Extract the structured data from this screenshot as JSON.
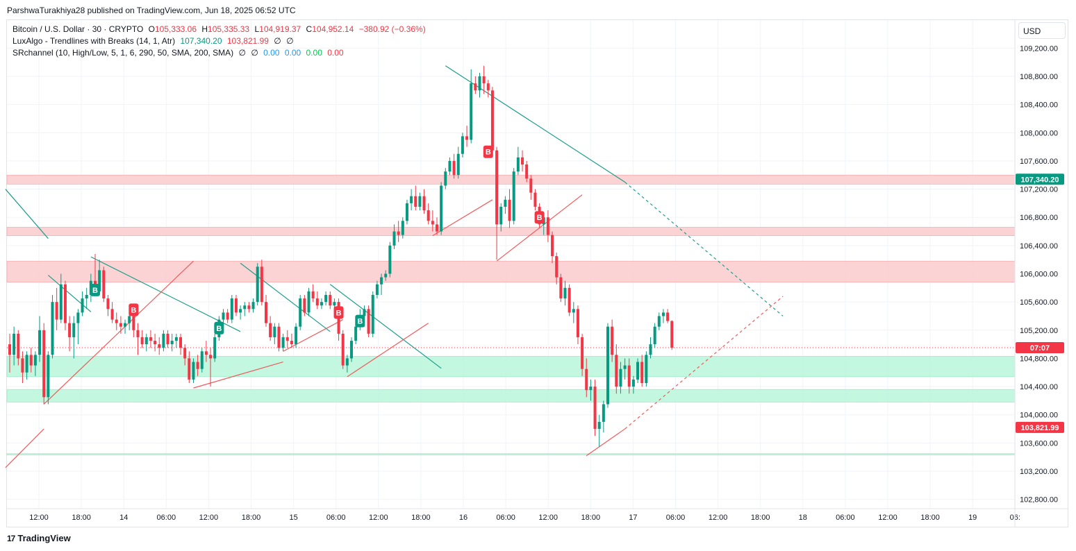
{
  "publisher": "ParshwaTurakhiya28 published on TradingView.com, Jun 18, 2025 06:52 UTC",
  "legend": {
    "symbol": "Bitcoin / U.S. Dollar · 30 · CRYPTO",
    "o_label": "O",
    "o": "105,333.06",
    "h_label": "H",
    "h": "105,335.33",
    "l_label": "L",
    "l": "104,919.37",
    "c_label": "C",
    "c": "104,952.14",
    "change": "−380.92 (−0.36%)",
    "ind1_name": "LuxAlgo - Trendlines with Breaks (14, 1, Atr)",
    "ind1_v1": "107,340.20",
    "ind1_v2": "103,821.99",
    "ind1_v3": "∅",
    "ind1_v4": "∅",
    "ind2_name": "SRchannel (10, High/Low, 5, 1, 6, 290, 50, SMA, 200, SMA)",
    "ind2_v1": "∅",
    "ind2_v2": "∅",
    "ind2_v3": "0.00",
    "ind2_v4": "0.00",
    "ind2_v5": "0.00",
    "ind2_v6": "0.00"
  },
  "currency_button": "USD",
  "footer": {
    "logo_text": "TradingView",
    "logo_mark": "17"
  },
  "colors": {
    "up": "#089981",
    "down": "#f23645",
    "grid": "#f0f3fa",
    "resistance_zone": "#fccbcd",
    "support_zone": "#b9f6da",
    "trend_teal": "#1b9e8a",
    "trend_red": "#f05a5a"
  },
  "chart_data": {
    "type": "candlestick",
    "title": "Bitcoin / U.S. Dollar · 30 · CRYPTO",
    "ylim": [
      102600,
      109400
    ],
    "y_ticks": [
      "109,200.00",
      "108,800.00",
      "108,400.00",
      "108,000.00",
      "107,600.00",
      "107,200.00",
      "106,800.00",
      "106,400.00",
      "106,000.00",
      "105,600.00",
      "105,200.00",
      "104,800.00",
      "104,400.00",
      "104,000.00",
      "103,600.00",
      "103,200.00",
      "102,800.00"
    ],
    "x_ticks": [
      "12:00",
      "18:00",
      "14",
      "06:00",
      "12:00",
      "18:00",
      "15",
      "06:00",
      "12:00",
      "18:00",
      "16",
      "06:00",
      "12:00",
      "18:00",
      "17",
      "06:00",
      "12:00",
      "18:00",
      "18",
      "06:00",
      "12:00",
      "18:00",
      "19",
      "06:"
    ],
    "price_labels": [
      {
        "text": "107,340.20",
        "value": 107340.2,
        "color": "#089981"
      },
      {
        "text": "07:07",
        "value": 104952,
        "color": "#f23645"
      },
      {
        "text": "103,821.99",
        "value": 103822,
        "color": "#f23645"
      }
    ],
    "last_price": 104952.14,
    "zones": [
      {
        "kind": "resistance",
        "low": 107270,
        "high": 107400
      },
      {
        "kind": "resistance",
        "low": 106540,
        "high": 106660
      },
      {
        "kind": "resistance",
        "low": 105880,
        "high": 106180
      },
      {
        "kind": "support",
        "low": 104540,
        "high": 104830
      },
      {
        "kind": "support",
        "low": 104180,
        "high": 104360
      },
      {
        "kind": "support_line",
        "low": 103430,
        "high": 103450
      }
    ],
    "trendlines": [
      {
        "color": "teal",
        "from": [
          -1,
          107200
        ],
        "to": [
          9,
          106500
        ],
        "dashed": false
      },
      {
        "color": "teal",
        "from": [
          9,
          105980
        ],
        "to": [
          19,
          105460
        ],
        "dashed": false
      },
      {
        "color": "teal",
        "from": [
          19,
          106240
        ],
        "to": [
          54,
          105180
        ],
        "dashed": false
      },
      {
        "color": "teal",
        "from": [
          54,
          106150
        ],
        "to": [
          75,
          105180
        ],
        "dashed": false
      },
      {
        "color": "teal",
        "from": [
          75,
          105850
        ],
        "to": [
          101,
          104660
        ],
        "dashed": false
      },
      {
        "color": "teal",
        "from": [
          102,
          108950
        ],
        "to": [
          144,
          107300
        ],
        "dashed": false
      },
      {
        "color": "teal",
        "from": [
          144,
          107300
        ],
        "to": [
          181,
          105400
        ],
        "dashed": true
      },
      {
        "color": "red",
        "from": [
          -1,
          103250
        ],
        "to": [
          8,
          103800
        ],
        "dashed": false
      },
      {
        "color": "red",
        "from": [
          8,
          104150
        ],
        "to": [
          43,
          106180
        ],
        "dashed": false
      },
      {
        "color": "red",
        "from": [
          43,
          104380
        ],
        "to": [
          64,
          104750
        ],
        "dashed": false
      },
      {
        "color": "red",
        "from": [
          64,
          104900
        ],
        "to": [
          78,
          105350
        ],
        "dashed": false
      },
      {
        "color": "red",
        "from": [
          79,
          104540
        ],
        "to": [
          98,
          105300
        ],
        "dashed": false
      },
      {
        "color": "red",
        "from": [
          99,
          106540
        ],
        "to": [
          113,
          107050
        ],
        "dashed": false
      },
      {
        "color": "red",
        "from": [
          114,
          106180
        ],
        "to": [
          134,
          107120
        ],
        "dashed": false
      },
      {
        "color": "red",
        "from": [
          135,
          103420
        ],
        "to": [
          144,
          103800
        ],
        "dashed": false
      },
      {
        "color": "red",
        "from": [
          144,
          103800
        ],
        "to": [
          181,
          105680
        ],
        "dashed": true
      }
    ],
    "break_labels": [
      {
        "text": "B",
        "index": 20,
        "value": 105760,
        "color": "#089981"
      },
      {
        "text": "B",
        "index": 29,
        "value": 105480,
        "color": "#f23645"
      },
      {
        "text": "B",
        "index": 49,
        "value": 105220,
        "color": "#089981"
      },
      {
        "text": "B",
        "index": 77,
        "value": 105440,
        "color": "#f23645"
      },
      {
        "text": "B",
        "index": 82,
        "value": 105320,
        "color": "#089981"
      },
      {
        "text": "B",
        "index": 112,
        "value": 107720,
        "color": "#f23645"
      },
      {
        "text": "B",
        "index": 124,
        "value": 106790,
        "color": "#f23645"
      }
    ],
    "candles": [
      [
        105000,
        105150,
        104600,
        104850
      ],
      [
        104850,
        105250,
        104700,
        105150
      ],
      [
        105150,
        105200,
        104700,
        104800
      ],
      [
        104800,
        104900,
        104450,
        104600
      ],
      [
        104600,
        104900,
        104500,
        104850
      ],
      [
        104850,
        104950,
        104600,
        104700
      ],
      [
        104700,
        104900,
        104550,
        104850
      ],
      [
        104850,
        105400,
        104750,
        105200
      ],
      [
        105200,
        105300,
        104150,
        104250
      ],
      [
        104250,
        104900,
        104150,
        104850
      ],
      [
        104850,
        105700,
        104800,
        105600
      ],
      [
        105600,
        105800,
        105200,
        105350
      ],
      [
        105350,
        106000,
        105300,
        105850
      ],
      [
        105850,
        105900,
        105200,
        105300
      ],
      [
        105300,
        105400,
        104900,
        105100
      ],
      [
        105100,
        105400,
        104800,
        105300
      ],
      [
        105300,
        105500,
        105000,
        105450
      ],
      [
        105450,
        105750,
        105400,
        105650
      ],
      [
        105650,
        105800,
        105500,
        105700
      ],
      [
        105700,
        106000,
        105600,
        105900
      ],
      [
        105900,
        106280,
        105700,
        105750
      ],
      [
        105750,
        106200,
        105700,
        106050
      ],
      [
        106050,
        106100,
        105600,
        105650
      ],
      [
        105650,
        105700,
        105400,
        105500
      ],
      [
        105500,
        105600,
        105300,
        105350
      ],
      [
        105350,
        105450,
        105200,
        105300
      ],
      [
        105300,
        105400,
        105150,
        105250
      ],
      [
        105250,
        105350,
        105150,
        105300
      ],
      [
        105300,
        105450,
        105200,
        105400
      ],
      [
        105400,
        105500,
        105100,
        105200
      ],
      [
        105200,
        105300,
        104850,
        105100
      ],
      [
        105100,
        105200,
        104950,
        105000
      ],
      [
        105000,
        105150,
        104900,
        105100
      ],
      [
        105100,
        105200,
        104950,
        105050
      ],
      [
        105050,
        105150,
        104900,
        105000
      ],
      [
        105000,
        105100,
        104850,
        104950
      ],
      [
        104950,
        105200,
        104900,
        105150
      ],
      [
        105150,
        105200,
        104950,
        105000
      ],
      [
        105000,
        105150,
        104900,
        105050
      ],
      [
        105050,
        105150,
        104950,
        105100
      ],
      [
        105100,
        105150,
        104850,
        104950
      ],
      [
        104950,
        105000,
        104700,
        104800
      ],
      [
        104800,
        104900,
        104450,
        104500
      ],
      [
        104500,
        104800,
        104450,
        104750
      ],
      [
        104750,
        104850,
        104550,
        104650
      ],
      [
        104650,
        104950,
        104600,
        104900
      ],
      [
        104900,
        105050,
        104750,
        104850
      ],
      [
        104850,
        104950,
        104400,
        104800
      ],
      [
        104800,
        105150,
        104750,
        105100
      ],
      [
        105100,
        105400,
        105050,
        105350
      ],
      [
        105350,
        105500,
        105250,
        105450
      ],
      [
        105450,
        105500,
        105300,
        105350
      ],
      [
        105350,
        105700,
        105300,
        105650
      ],
      [
        105650,
        105700,
        105400,
        105450
      ],
      [
        105450,
        105550,
        105350,
        105500
      ],
      [
        105500,
        105600,
        105400,
        105550
      ],
      [
        105550,
        105600,
        105450,
        105500
      ],
      [
        105500,
        105650,
        105450,
        105600
      ],
      [
        105600,
        106150,
        105550,
        106100
      ],
      [
        106100,
        106200,
        105550,
        105600
      ],
      [
        105600,
        105700,
        105250,
        105300
      ],
      [
        105300,
        105400,
        105050,
        105100
      ],
      [
        105100,
        105300,
        105000,
        105250
      ],
      [
        105250,
        105300,
        104900,
        104950
      ],
      [
        104950,
        105150,
        104900,
        105100
      ],
      [
        105100,
        105200,
        104950,
        105050
      ],
      [
        105050,
        105150,
        104950,
        105000
      ],
      [
        105000,
        105300,
        104950,
        105250
      ],
      [
        105250,
        105700,
        105200,
        105650
      ],
      [
        105650,
        105700,
        105400,
        105450
      ],
      [
        105450,
        105800,
        105400,
        105750
      ],
      [
        105750,
        105850,
        105600,
        105650
      ],
      [
        105650,
        105750,
        105500,
        105550
      ],
      [
        105550,
        105650,
        105500,
        105600
      ],
      [
        105600,
        105750,
        105550,
        105700
      ],
      [
        105700,
        105750,
        105500,
        105550
      ],
      [
        105550,
        105650,
        105450,
        105600
      ],
      [
        105600,
        105650,
        105050,
        105150
      ],
      [
        105150,
        105200,
        104650,
        104700
      ],
      [
        104700,
        104850,
        104600,
        104800
      ],
      [
        104800,
        105100,
        104750,
        105050
      ],
      [
        105050,
        105300,
        105000,
        105250
      ],
      [
        105250,
        105500,
        105200,
        105400
      ],
      [
        105400,
        105550,
        105300,
        105500
      ],
      [
        105500,
        105550,
        105100,
        105150
      ],
      [
        105150,
        105750,
        105100,
        105700
      ],
      [
        105700,
        105900,
        105650,
        105850
      ],
      [
        105850,
        106000,
        105700,
        105950
      ],
      [
        105950,
        106050,
        105900,
        106000
      ],
      [
        106000,
        106450,
        105950,
        106400
      ],
      [
        106400,
        106700,
        106350,
        106600
      ],
      [
        106600,
        106750,
        106450,
        106550
      ],
      [
        106550,
        106800,
        106500,
        106750
      ],
      [
        106750,
        107050,
        106700,
        107000
      ],
      [
        107000,
        107200,
        106900,
        107100
      ],
      [
        107100,
        107250,
        106900,
        106950
      ],
      [
        106950,
        107150,
        106900,
        107100
      ],
      [
        107100,
        107200,
        106850,
        106900
      ],
      [
        106900,
        107000,
        106700,
        106750
      ],
      [
        106750,
        106900,
        106600,
        106700
      ],
      [
        106700,
        106800,
        106550,
        106600
      ],
      [
        106600,
        107300,
        106550,
        107250
      ],
      [
        107250,
        107500,
        107200,
        107450
      ],
      [
        107450,
        107650,
        107400,
        107600
      ],
      [
        107600,
        107700,
        107350,
        107400
      ],
      [
        107400,
        107800,
        107350,
        107700
      ],
      [
        107700,
        108000,
        107650,
        107950
      ],
      [
        107950,
        108100,
        107800,
        107900
      ],
      [
        107900,
        108900,
        107850,
        108700
      ],
      [
        108700,
        108800,
        108550,
        108600
      ],
      [
        108600,
        108850,
        108500,
        108800
      ],
      [
        108800,
        108950,
        108550,
        108700
      ],
      [
        108700,
        108750,
        108500,
        108600
      ],
      [
        108600,
        108650,
        107700,
        107750
      ],
      [
        107750,
        107800,
        106200,
        106700
      ],
      [
        106700,
        107000,
        106600,
        106950
      ],
      [
        106950,
        107100,
        106850,
        107050
      ],
      [
        107050,
        107200,
        106650,
        106750
      ],
      [
        106750,
        107500,
        106700,
        107450
      ],
      [
        107450,
        107800,
        107400,
        107650
      ],
      [
        107650,
        107750,
        107450,
        107550
      ],
      [
        107550,
        107600,
        107300,
        107350
      ],
      [
        107350,
        107400,
        107050,
        107150
      ],
      [
        107150,
        107200,
        106900,
        106950
      ],
      [
        106950,
        107000,
        106650,
        106700
      ],
      [
        106700,
        106850,
        106550,
        106800
      ],
      [
        106800,
        106900,
        106450,
        106550
      ],
      [
        106550,
        106600,
        106150,
        106250
      ],
      [
        106250,
        106300,
        105850,
        105950
      ],
      [
        105950,
        106000,
        105600,
        105650
      ],
      [
        105650,
        105900,
        105550,
        105800
      ],
      [
        105800,
        105850,
        105400,
        105450
      ],
      [
        105450,
        105600,
        105300,
        105500
      ],
      [
        105500,
        105550,
        105000,
        105100
      ],
      [
        105100,
        105150,
        104550,
        104650
      ],
      [
        104650,
        104800,
        104250,
        104350
      ],
      [
        104350,
        104500,
        104200,
        104400
      ],
      [
        104400,
        104500,
        103700,
        103800
      ],
      [
        103800,
        104000,
        103550,
        103900
      ],
      [
        103900,
        104200,
        103750,
        104150
      ],
      [
        104150,
        105300,
        104100,
        105250
      ],
      [
        105250,
        105350,
        104750,
        104850
      ],
      [
        104850,
        105000,
        104300,
        104400
      ],
      [
        104400,
        104750,
        104300,
        104650
      ],
      [
        104650,
        104800,
        104500,
        104700
      ],
      [
        104700,
        104800,
        104300,
        104400
      ],
      [
        104400,
        104550,
        104300,
        104500
      ],
      [
        104500,
        104800,
        104450,
        104750
      ],
      [
        104750,
        104850,
        104400,
        104450
      ],
      [
        104450,
        104900,
        104400,
        104850
      ],
      [
        104850,
        105100,
        104800,
        105000
      ],
      [
        105000,
        105300,
        104950,
        105250
      ],
      [
        105250,
        105450,
        105200,
        105400
      ],
      [
        105400,
        105500,
        105300,
        105450
      ],
      [
        105450,
        105500,
        105300,
        105330
      ],
      [
        105330,
        105340,
        104920,
        104952
      ]
    ]
  }
}
